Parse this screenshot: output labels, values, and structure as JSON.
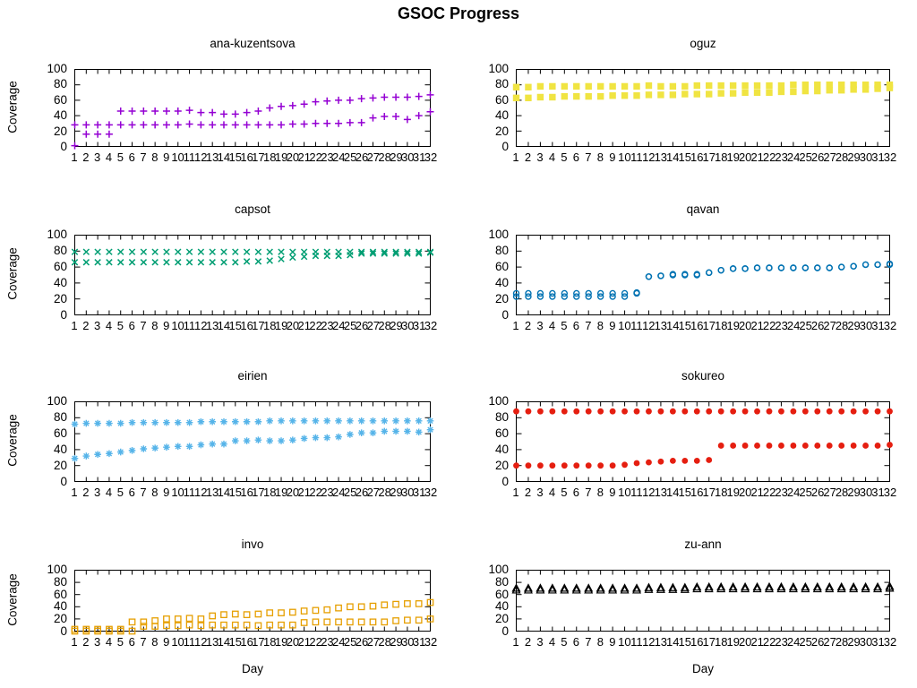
{
  "title": "GSOC Progress",
  "axis": {
    "ylabel": "Coverage",
    "xlabel": "Day",
    "ylim": [
      0,
      100
    ],
    "yticks": [
      0,
      20,
      40,
      60,
      80,
      100
    ],
    "xticks": [
      1,
      2,
      3,
      4,
      5,
      6,
      7,
      8,
      9,
      10,
      11,
      12,
      13,
      14,
      15,
      16,
      17,
      18,
      19,
      20,
      21,
      22,
      23,
      24,
      25,
      26,
      27,
      28,
      29,
      30,
      31,
      32
    ],
    "grid": false,
    "legend": "none"
  },
  "chart_data": [
    {
      "type": "scatter",
      "title": "ana-kuzentsova",
      "marker": "plus",
      "color": "#9400d3",
      "series": [
        {
          "name": "series-1",
          "values": [
            28,
            28,
            28,
            28,
            46,
            46,
            46,
            46,
            46,
            46,
            47,
            44,
            44,
            42,
            42,
            44,
            46,
            50,
            52,
            53,
            55,
            58,
            59,
            60,
            60,
            62,
            63,
            64,
            64,
            64,
            65,
            67
          ]
        },
        {
          "name": "series-2",
          "values": [
            1,
            16,
            16,
            16,
            28,
            28,
            28,
            28,
            28,
            28,
            29,
            28,
            28,
            28,
            28,
            28,
            28,
            28,
            28,
            29,
            29,
            30,
            30,
            30,
            31,
            31,
            37,
            39,
            39,
            35,
            40,
            45
          ]
        }
      ]
    },
    {
      "type": "scatter",
      "title": "oguz",
      "marker": "filled-square",
      "color": "#f0e442",
      "series": [
        {
          "name": "series-1",
          "values": [
            77,
            77,
            78,
            78,
            78,
            78,
            78,
            78,
            78,
            78,
            78,
            79,
            78,
            78,
            78,
            79,
            79,
            79,
            79,
            79,
            79,
            79,
            79,
            80,
            80,
            80,
            80,
            80,
            80,
            80,
            80,
            80
          ]
        },
        {
          "name": "series-2",
          "values": [
            63,
            63,
            64,
            64,
            65,
            65,
            65,
            65,
            66,
            66,
            66,
            67,
            67,
            67,
            68,
            68,
            68,
            69,
            69,
            70,
            70,
            70,
            71,
            71,
            72,
            72,
            73,
            73,
            74,
            74,
            75,
            76
          ]
        }
      ]
    },
    {
      "type": "scatter",
      "title": "capsot",
      "marker": "cross",
      "color": "#009e73",
      "series": [
        {
          "name": "series-1",
          "values": [
            79,
            79,
            79,
            79,
            79,
            79,
            79,
            79,
            79,
            79,
            79,
            79,
            79,
            79,
            79,
            79,
            79,
            79,
            79,
            79,
            79,
            79,
            79,
            79,
            79,
            79,
            79,
            79,
            79,
            79,
            79,
            79
          ]
        },
        {
          "name": "series-2",
          "values": [
            66,
            66,
            66,
            66,
            66,
            66,
            66,
            66,
            66,
            66,
            66,
            66,
            66,
            66,
            66,
            67,
            67,
            68,
            70,
            72,
            73,
            74,
            74,
            74,
            75,
            77,
            77,
            77,
            77,
            77,
            77,
            78
          ]
        }
      ]
    },
    {
      "type": "scatter",
      "title": "qavan",
      "marker": "open-circle",
      "color": "#0072b2",
      "series": [
        {
          "name": "series-1",
          "values": [
            27,
            27,
            27,
            27,
            27,
            27,
            27,
            27,
            27,
            27,
            28,
            48,
            49,
            51,
            51,
            51,
            53,
            56,
            58,
            58,
            59,
            59,
            59,
            59,
            59,
            59,
            59,
            60,
            61,
            63,
            63,
            64
          ]
        },
        {
          "name": "series-2",
          "values": [
            23,
            23,
            23,
            23,
            23,
            23,
            23,
            23,
            23,
            23,
            27,
            48,
            49,
            50,
            50,
            50,
            53,
            56,
            58,
            58,
            59,
            59,
            59,
            59,
            59,
            59,
            59,
            60,
            61,
            63,
            63,
            63
          ]
        }
      ]
    },
    {
      "type": "scatter",
      "title": "eirien",
      "marker": "asterisk",
      "color": "#56b4e9",
      "series": [
        {
          "name": "series-1",
          "values": [
            72,
            73,
            73,
            73,
            73,
            74,
            74,
            74,
            74,
            74,
            74,
            75,
            75,
            75,
            75,
            75,
            75,
            76,
            76,
            76,
            76,
            76,
            76,
            76,
            76,
            76,
            76,
            76,
            76,
            76,
            76,
            76
          ]
        },
        {
          "name": "series-2",
          "values": [
            29,
            32,
            34,
            35,
            37,
            39,
            41,
            42,
            43,
            44,
            44,
            46,
            47,
            47,
            51,
            51,
            52,
            51,
            51,
            52,
            54,
            55,
            55,
            56,
            59,
            61,
            61,
            63,
            63,
            63,
            62,
            65
          ]
        }
      ]
    },
    {
      "type": "scatter",
      "title": "sokureo",
      "marker": "filled-circle",
      "color": "#e51e10",
      "series": [
        {
          "name": "series-1",
          "values": [
            88,
            88,
            88,
            88,
            88,
            88,
            88,
            88,
            88,
            88,
            88,
            88,
            88,
            88,
            88,
            88,
            88,
            88,
            88,
            88,
            88,
            88,
            88,
            88,
            88,
            88,
            88,
            88,
            88,
            88,
            88,
            88
          ]
        },
        {
          "name": "series-2",
          "values": [
            20,
            20,
            20,
            20,
            20,
            20,
            20,
            20,
            20,
            21,
            23,
            24,
            25,
            26,
            26,
            26,
            27,
            45,
            45,
            45,
            45,
            45,
            45,
            45,
            45,
            45,
            45,
            45,
            45,
            45,
            45,
            46
          ]
        }
      ]
    },
    {
      "type": "scatter",
      "title": "invo",
      "marker": "open-square",
      "color": "#e69f00",
      "series": [
        {
          "name": "series-1",
          "values": [
            3,
            3,
            3,
            3,
            3,
            15,
            15,
            17,
            20,
            20,
            21,
            20,
            25,
            27,
            28,
            27,
            28,
            30,
            30,
            31,
            33,
            34,
            35,
            38,
            40,
            40,
            41,
            43,
            44,
            45,
            45,
            47
          ]
        },
        {
          "name": "series-2",
          "values": [
            0,
            0,
            0,
            0,
            0,
            0,
            8,
            8,
            9,
            9,
            10,
            9,
            10,
            10,
            10,
            10,
            9,
            10,
            10,
            10,
            14,
            15,
            15,
            15,
            15,
            15,
            15,
            15,
            17,
            18,
            18,
            20
          ]
        }
      ]
    },
    {
      "type": "scatter",
      "title": "zu-ann",
      "marker": "open-triangle",
      "color": "#000000",
      "series": [
        {
          "name": "series-1",
          "values": [
            70,
            70,
            70,
            70,
            70,
            70,
            70,
            70,
            70,
            70,
            70,
            71,
            71,
            71,
            71,
            72,
            72,
            72,
            72,
            72,
            72,
            72,
            72,
            72,
            72,
            72,
            72,
            72,
            72,
            72,
            72,
            73
          ]
        },
        {
          "name": "series-2",
          "values": [
            67,
            67,
            67,
            67,
            67,
            67,
            67,
            67,
            67,
            67,
            67,
            68,
            68,
            68,
            68,
            69,
            69,
            69,
            69,
            69,
            69,
            69,
            69,
            69,
            69,
            69,
            69,
            69,
            69,
            69,
            69,
            70
          ]
        }
      ]
    }
  ]
}
